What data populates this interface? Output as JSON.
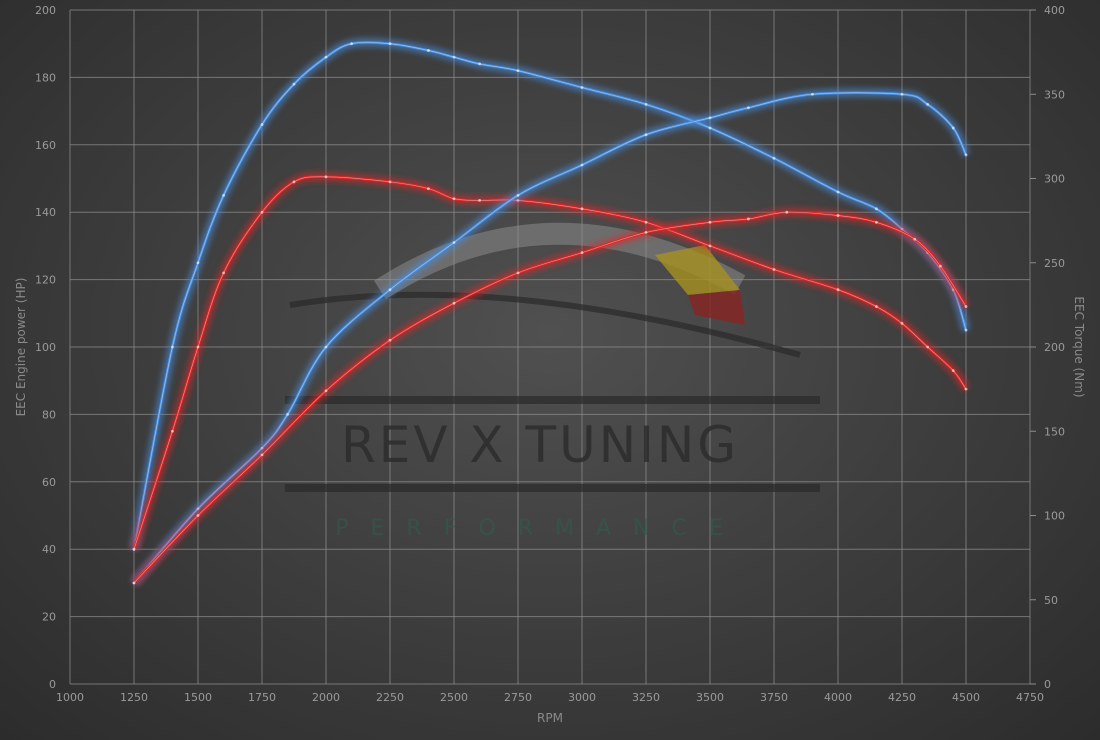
{
  "chart_data": {
    "type": "line",
    "title": "",
    "xlabel": "RPM",
    "ylabel_left": "EEC Engine power (HP)",
    "ylabel_right": "EEC Torque (Nm)",
    "xlim": [
      1000,
      4750
    ],
    "ylim_left": [
      0,
      200
    ],
    "ylim_right": [
      0,
      400
    ],
    "x_ticks": [
      1000,
      1250,
      1500,
      1750,
      2000,
      2250,
      2500,
      2750,
      3000,
      3250,
      3500,
      3750,
      4000,
      4250,
      4500,
      4750
    ],
    "y_ticks_left": [
      0,
      20,
      40,
      60,
      80,
      100,
      120,
      140,
      160,
      180,
      200
    ],
    "y_ticks_right": [
      0,
      50,
      100,
      150,
      200,
      250,
      300,
      350,
      400
    ],
    "grid": true,
    "legend": "none",
    "series": [
      {
        "axis": "left",
        "color": "#4a90e2",
        "x": [
          1250,
          1400,
          1500,
          1600,
          1750,
          1875,
          2000,
          2100,
          2250,
          2400,
          2500,
          2600,
          2750,
          3000,
          3250,
          3500,
          3750,
          4000,
          4150,
          4250,
          4350,
          4450,
          4500
        ],
        "y": [
          40,
          100,
          125,
          145,
          166,
          178,
          186,
          190,
          190,
          188,
          186,
          184,
          182,
          177,
          172,
          165,
          156,
          146,
          141,
          135,
          128,
          117,
          105
        ]
      },
      {
        "axis": "left",
        "color": "#e02828",
        "x": [
          1250,
          1400,
          1500,
          1600,
          1750,
          1875,
          2000,
          2250,
          2400,
          2500,
          2600,
          2750,
          3000,
          3250,
          3500,
          3750,
          4000,
          4150,
          4250,
          4350,
          4450,
          4500
        ],
        "y": [
          40,
          75,
          100,
          122,
          140,
          149,
          150.5,
          149,
          147,
          144,
          143.5,
          143.5,
          141,
          137,
          130,
          123,
          117,
          112,
          107,
          100,
          93,
          87.5
        ]
      },
      {
        "axis": "right",
        "color": "#4a90e2",
        "x": [
          1250,
          1500,
          1750,
          1850,
          2000,
          2250,
          2500,
          2750,
          3000,
          3250,
          3500,
          3650,
          3900,
          4250,
          4350,
          4450,
          4500
        ],
        "y": [
          60,
          104,
          140,
          160,
          200,
          234,
          262,
          290,
          308,
          326,
          336,
          342,
          350,
          350,
          344,
          330,
          314
        ]
      },
      {
        "axis": "right",
        "color": "#e02828",
        "x": [
          1250,
          1500,
          1750,
          2000,
          2250,
          2500,
          2750,
          3000,
          3250,
          3500,
          3650,
          3800,
          4000,
          4150,
          4300,
          4400,
          4500
        ],
        "y": [
          60,
          100,
          136,
          174,
          204,
          226,
          244,
          256,
          268,
          274,
          276,
          280,
          278,
          274,
          264,
          248,
          224
        ]
      }
    ]
  },
  "watermark": {
    "main": "REV X TUNING",
    "sub": "PERFORMANCE"
  },
  "colors": {
    "grid": "#8c8c8c",
    "background": "#3c3c3c"
  }
}
